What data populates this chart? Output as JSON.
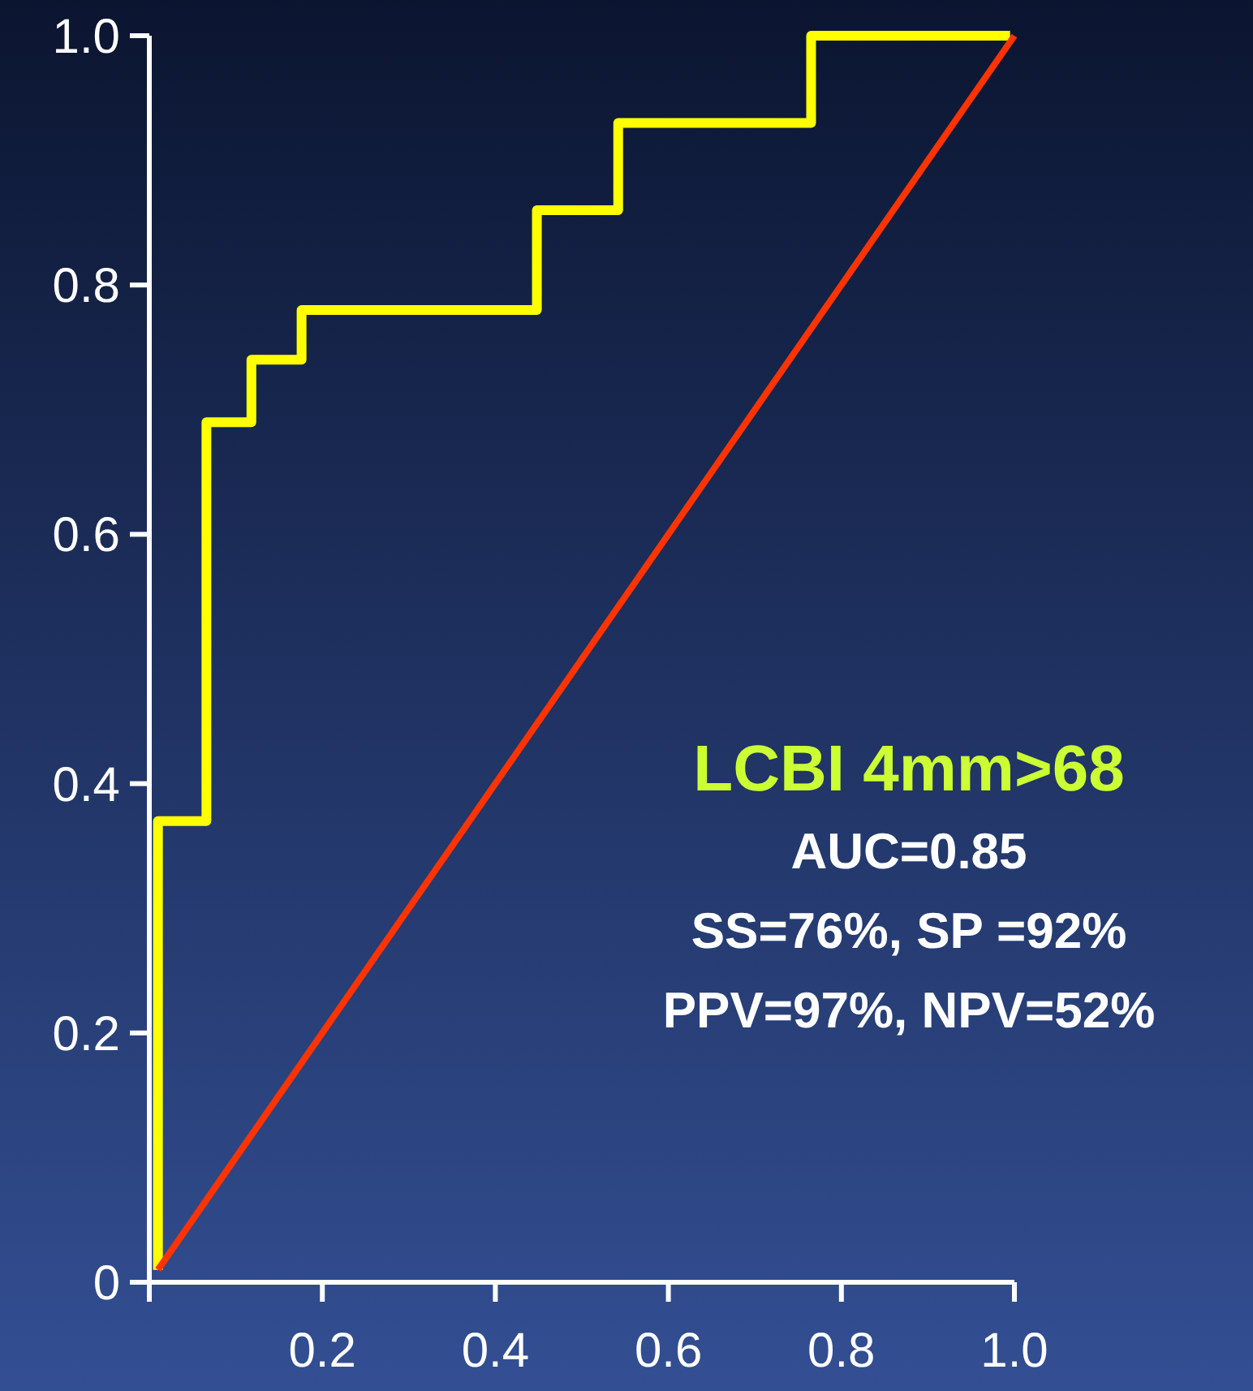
{
  "chart_data": {
    "type": "line",
    "series": [
      {
        "type": "step",
        "color": "#ffff00",
        "x": [
          0.01,
          0.01,
          0.066,
          0.118,
          0.176,
          0.448,
          0.542,
          0.765,
          0.995
        ],
        "values": [
          0.01,
          0.37,
          0.69,
          0.74,
          0.78,
          0.86,
          0.93,
          1.0,
          1.0
        ]
      },
      {
        "color": "#ff3300",
        "x": [
          0.01,
          1.0
        ],
        "values": [
          0.01,
          1.0
        ]
      }
    ],
    "xlim": [
      0,
      1
    ],
    "ylim": [
      0,
      1
    ],
    "xticks": [
      {
        "value": 0,
        "label": null
      },
      0.2,
      0.4,
      0.6,
      0.8,
      {
        "value": 1,
        "label": "1.0"
      }
    ],
    "yticks": [
      {
        "value": 0,
        "label": "0"
      },
      0.2,
      0.4,
      0.6,
      0.8,
      {
        "value": 1,
        "label": "1.0"
      }
    ],
    "grid": false,
    "annotations": [
      "LCBI 4mm>68",
      "AUC=0.85",
      "SS=76%, SP =92%",
      "PPV=97%, NPV=52%"
    ]
  }
}
